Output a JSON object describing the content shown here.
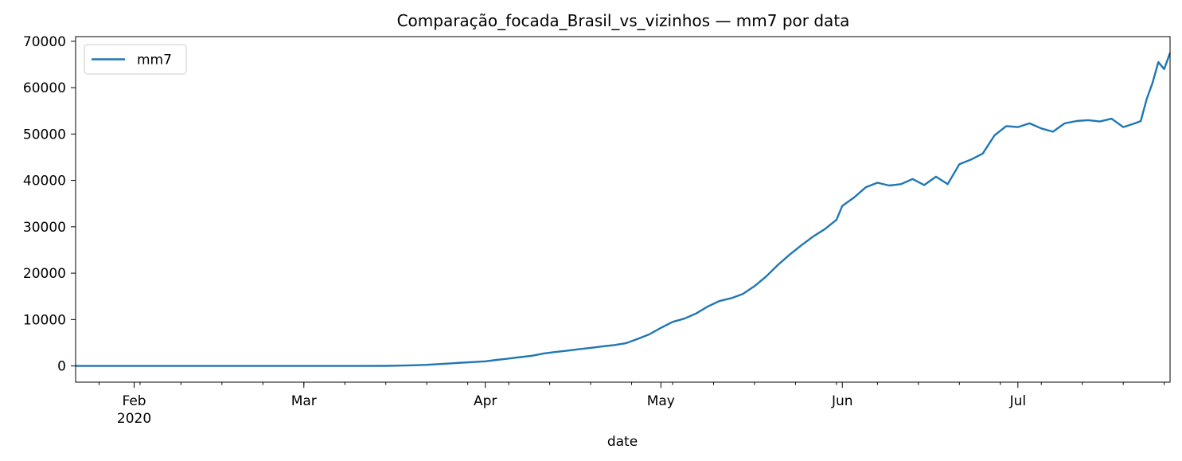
{
  "chart_data": {
    "type": "line",
    "title": "Comparação_focada_Brasil_vs_vizinhos — mm7 por data",
    "xlabel": "date",
    "ylabel": "",
    "x_range": [
      "2020-01-22",
      "2020-07-27"
    ],
    "ylim": [
      -3500,
      71000
    ],
    "y_ticks": [
      0,
      10000,
      20000,
      30000,
      40000,
      50000,
      60000,
      70000
    ],
    "x_major_ticks": [
      {
        "date": "2020-02-01",
        "label": "Feb",
        "sublabel": "2020"
      },
      {
        "date": "2020-03-01",
        "label": "Mar",
        "sublabel": ""
      },
      {
        "date": "2020-04-01",
        "label": "Apr",
        "sublabel": ""
      },
      {
        "date": "2020-05-01",
        "label": "May",
        "sublabel": ""
      },
      {
        "date": "2020-06-01",
        "label": "Jun",
        "sublabel": ""
      },
      {
        "date": "2020-07-01",
        "label": "Jul",
        "sublabel": ""
      }
    ],
    "legend": {
      "position": "upper-left"
    },
    "grid": false,
    "series": [
      {
        "name": "mm7",
        "color": "#1f77b4",
        "points": [
          [
            "2020-01-22",
            0
          ],
          [
            "2020-02-01",
            0
          ],
          [
            "2020-02-15",
            0
          ],
          [
            "2020-03-01",
            0
          ],
          [
            "2020-03-10",
            0
          ],
          [
            "2020-03-15",
            20
          ],
          [
            "2020-03-18",
            80
          ],
          [
            "2020-03-20",
            150
          ],
          [
            "2020-03-22",
            250
          ],
          [
            "2020-03-24",
            400
          ],
          [
            "2020-03-26",
            550
          ],
          [
            "2020-03-28",
            700
          ],
          [
            "2020-03-30",
            850
          ],
          [
            "2020-04-01",
            1000
          ],
          [
            "2020-04-03",
            1300
          ],
          [
            "2020-04-05",
            1600
          ],
          [
            "2020-04-07",
            1900
          ],
          [
            "2020-04-09",
            2200
          ],
          [
            "2020-04-11",
            2700
          ],
          [
            "2020-04-13",
            3000
          ],
          [
            "2020-04-15",
            3300
          ],
          [
            "2020-04-17",
            3600
          ],
          [
            "2020-04-19",
            3900
          ],
          [
            "2020-04-21",
            4200
          ],
          [
            "2020-04-23",
            4500
          ],
          [
            "2020-04-25",
            4900
          ],
          [
            "2020-04-27",
            5800
          ],
          [
            "2020-04-29",
            6800
          ],
          [
            "2020-05-01",
            8200
          ],
          [
            "2020-05-03",
            9500
          ],
          [
            "2020-05-05",
            10200
          ],
          [
            "2020-05-07",
            11300
          ],
          [
            "2020-05-09",
            12800
          ],
          [
            "2020-05-11",
            14000
          ],
          [
            "2020-05-13",
            14600
          ],
          [
            "2020-05-15",
            15500
          ],
          [
            "2020-05-17",
            17200
          ],
          [
            "2020-05-19",
            19300
          ],
          [
            "2020-05-21",
            21800
          ],
          [
            "2020-05-23",
            24000
          ],
          [
            "2020-05-25",
            26000
          ],
          [
            "2020-05-27",
            27900
          ],
          [
            "2020-05-29",
            29500
          ],
          [
            "2020-05-31",
            31500
          ],
          [
            "2020-06-01",
            34500
          ],
          [
            "2020-06-03",
            36300
          ],
          [
            "2020-06-05",
            38500
          ],
          [
            "2020-06-07",
            39500
          ],
          [
            "2020-06-09",
            38900
          ],
          [
            "2020-06-11",
            39200
          ],
          [
            "2020-06-13",
            40300
          ],
          [
            "2020-06-15",
            39000
          ],
          [
            "2020-06-17",
            40800
          ],
          [
            "2020-06-19",
            39200
          ],
          [
            "2020-06-21",
            43500
          ],
          [
            "2020-06-23",
            44500
          ],
          [
            "2020-06-25",
            45800
          ],
          [
            "2020-06-27",
            49700
          ],
          [
            "2020-06-29",
            51700
          ],
          [
            "2020-07-01",
            51500
          ],
          [
            "2020-07-03",
            52300
          ],
          [
            "2020-07-05",
            51200
          ],
          [
            "2020-07-07",
            50500
          ],
          [
            "2020-07-09",
            52300
          ],
          [
            "2020-07-11",
            52800
          ],
          [
            "2020-07-13",
            53000
          ],
          [
            "2020-07-15",
            52700
          ],
          [
            "2020-07-17",
            53300
          ],
          [
            "2020-07-19",
            51500
          ],
          [
            "2020-07-21",
            52300
          ],
          [
            "2020-07-22",
            52800
          ],
          [
            "2020-07-23",
            57500
          ],
          [
            "2020-07-24",
            61000
          ],
          [
            "2020-07-25",
            65500
          ],
          [
            "2020-07-26",
            64000
          ],
          [
            "2020-07-27",
            67500
          ]
        ]
      }
    ]
  }
}
